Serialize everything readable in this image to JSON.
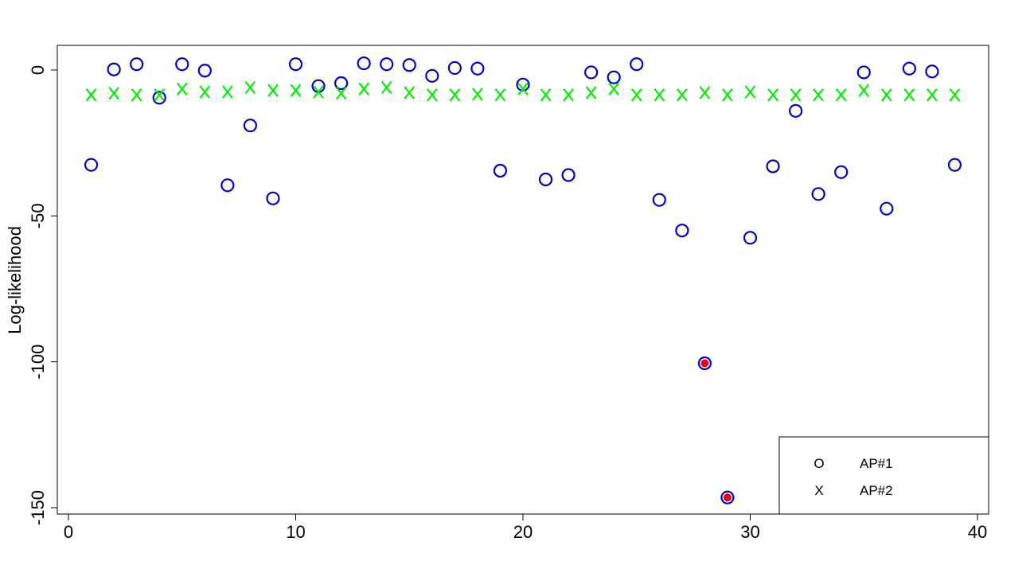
{
  "chart_data": {
    "type": "scatter",
    "title": "",
    "xlabel": "",
    "ylabel": "Log-likelihood",
    "xlim": [
      0,
      40
    ],
    "ylim": [
      -150,
      0
    ],
    "xticks": [
      0,
      10,
      20,
      30,
      40
    ],
    "yticks": [
      0,
      -50,
      -100,
      -150
    ],
    "xtick_labels": [
      "0",
      "10",
      "20",
      "30",
      "40"
    ],
    "ytick_labels": [
      "0",
      "-50",
      "-100",
      "-150"
    ],
    "grid": false,
    "legend_position": "bottom-right",
    "series": [
      {
        "name": "AP#1",
        "marker": "O",
        "color": "#0000CC",
        "x": [
          1,
          2,
          3,
          4,
          5,
          6,
          7,
          8,
          9,
          10,
          11,
          12,
          13,
          14,
          15,
          16,
          17,
          18,
          19,
          20,
          21,
          22,
          23,
          24,
          25,
          26,
          27,
          28,
          29,
          30,
          31,
          32,
          33,
          34,
          35,
          36,
          37,
          38,
          39
        ],
        "y": [
          -32.5,
          0.2,
          2,
          -9.5,
          2,
          -0.2,
          -39.5,
          -19,
          -44,
          2,
          -5.5,
          -4.5,
          2.3,
          2,
          1.7,
          -2,
          0.7,
          0.5,
          -34.5,
          -5,
          -37.5,
          -36,
          -0.8,
          -2.5,
          2,
          -44.5,
          -55,
          -100.5,
          -146.5,
          -57.5,
          -33,
          -14,
          -42.5,
          -35,
          -0.8,
          -47.5,
          0.5,
          -0.5,
          -32.5
        ]
      },
      {
        "name": "AP#2",
        "marker": "X",
        "color": "#00EE00",
        "x": [
          1,
          2,
          3,
          4,
          5,
          6,
          7,
          8,
          9,
          10,
          11,
          12,
          13,
          14,
          15,
          16,
          17,
          18,
          19,
          20,
          21,
          22,
          23,
          24,
          25,
          26,
          27,
          28,
          29,
          30,
          31,
          32,
          33,
          34,
          35,
          36,
          37,
          38,
          39
        ],
        "y": [
          -8.5,
          -8,
          -8.5,
          -8.5,
          -6.5,
          -7.5,
          -7.5,
          -6,
          -7,
          -7,
          -7.5,
          -8,
          -6.5,
          -6,
          -7.8,
          -8.5,
          -8.5,
          -8.3,
          -8.5,
          -6.5,
          -8.5,
          -8.5,
          -7.8,
          -6.5,
          -8.5,
          -8.5,
          -8.5,
          -7.8,
          -8.5,
          -7.5,
          -8.5,
          -8.5,
          -8.5,
          -8.5,
          -7,
          -8.5,
          -8.5,
          -8.5,
          -8.5
        ]
      }
    ],
    "highlighted_points": {
      "color": "#EE0000",
      "x": [
        28,
        29
      ],
      "y": [
        -100.5,
        -146.5
      ]
    }
  }
}
